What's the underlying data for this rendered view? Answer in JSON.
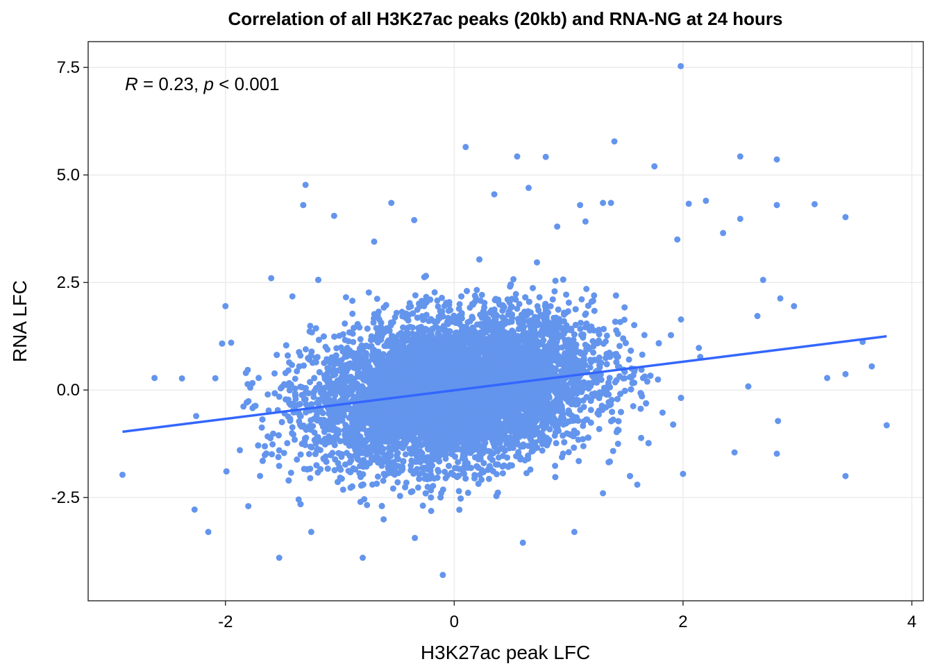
{
  "chart_data": {
    "type": "scatter",
    "title": "Correlation of all H3K27ac peaks (20kb) and RNA-NG at 24 hours",
    "xlabel": "H3K27ac peak LFC",
    "ylabel": "RNA LFC",
    "annotation": {
      "r_symbol": "R",
      "r_text": " = 0.23, ",
      "p_symbol": "p",
      "p_text": " < 0.001"
    },
    "xlim": [
      -3.2,
      4.1
    ],
    "ylim": [
      -4.9,
      8.1
    ],
    "x_ticks": [
      {
        "value": -2,
        "label": "-2"
      },
      {
        "value": 0,
        "label": "0"
      },
      {
        "value": 2,
        "label": "2"
      },
      {
        "value": 4,
        "label": "4"
      }
    ],
    "y_ticks": [
      {
        "value": -2.5,
        "label": "-2.5"
      },
      {
        "value": 0.0,
        "label": "0.0"
      },
      {
        "value": 2.5,
        "label": "2.5"
      },
      {
        "value": 5.0,
        "label": "5.0"
      },
      {
        "value": 7.5,
        "label": "7.5"
      }
    ],
    "grid": true,
    "point_color": "#6495ED",
    "trend_color": "#3366FF",
    "trend_line": {
      "x": [
        -2.9,
        3.78
      ],
      "y": [
        -0.97,
        1.25
      ]
    },
    "points": [
      {
        "x": 1.98,
        "y": 7.53
      },
      {
        "x": 1.4,
        "y": 5.78
      },
      {
        "x": 0.1,
        "y": 5.65
      },
      {
        "x": 2.5,
        "y": 5.43
      },
      {
        "x": 2.82,
        "y": 5.36
      },
      {
        "x": 1.75,
        "y": 5.2
      },
      {
        "x": 0.55,
        "y": 5.43
      },
      {
        "x": 0.8,
        "y": 5.42
      },
      {
        "x": -1.3,
        "y": 4.77
      },
      {
        "x": -1.32,
        "y": 4.3
      },
      {
        "x": -1.05,
        "y": 4.05
      },
      {
        "x": 2.05,
        "y": 4.33
      },
      {
        "x": 2.2,
        "y": 4.4
      },
      {
        "x": 2.82,
        "y": 4.3
      },
      {
        "x": 3.15,
        "y": 4.32
      },
      {
        "x": 3.42,
        "y": 4.02
      },
      {
        "x": 2.5,
        "y": 3.98
      },
      {
        "x": 2.35,
        "y": 3.65
      },
      {
        "x": 1.3,
        "y": 4.35
      },
      {
        "x": 1.37,
        "y": 4.35
      },
      {
        "x": 1.1,
        "y": 4.3
      },
      {
        "x": 0.65,
        "y": 4.7
      },
      {
        "x": 0.35,
        "y": 4.55
      },
      {
        "x": -0.55,
        "y": 4.35
      },
      {
        "x": -0.35,
        "y": 3.95
      },
      {
        "x": 1.95,
        "y": 3.5
      },
      {
        "x": 2.7,
        "y": 2.56
      },
      {
        "x": 2.97,
        "y": 1.95
      },
      {
        "x": 2.85,
        "y": 2.13
      },
      {
        "x": 2.65,
        "y": 1.72
      },
      {
        "x": 3.26,
        "y": 0.28
      },
      {
        "x": 3.42,
        "y": 0.37
      },
      {
        "x": 3.65,
        "y": 0.55
      },
      {
        "x": 3.57,
        "y": 1.12
      },
      {
        "x": 3.78,
        "y": -0.82
      },
      {
        "x": 3.42,
        "y": -2.0
      },
      {
        "x": 2.83,
        "y": -0.72
      },
      {
        "x": 2.82,
        "y": -1.48
      },
      {
        "x": 2.45,
        "y": -1.45
      },
      {
        "x": 2.0,
        "y": -1.95
      },
      {
        "x": -2.9,
        "y": -1.97
      },
      {
        "x": -2.62,
        "y": 0.28
      },
      {
        "x": -2.38,
        "y": 0.27
      },
      {
        "x": -2.27,
        "y": -2.78
      },
      {
        "x": -2.15,
        "y": -3.3
      },
      {
        "x": -2.0,
        "y": 1.95
      },
      {
        "x": -1.53,
        "y": -3.9
      },
      {
        "x": -1.25,
        "y": -3.3
      },
      {
        "x": -0.8,
        "y": -3.9
      },
      {
        "x": -0.1,
        "y": -4.3
      },
      {
        "x": 0.6,
        "y": -3.55
      },
      {
        "x": 1.05,
        "y": -3.3
      },
      {
        "x": -1.6,
        "y": 2.6
      },
      {
        "x": -1.95,
        "y": 1.1
      },
      {
        "x": 1.6,
        "y": -2.2
      },
      {
        "x": -1.8,
        "y": -2.7
      },
      {
        "x": 1.3,
        "y": -2.4
      },
      {
        "x": -0.7,
        "y": 3.45
      },
      {
        "x": 0.9,
        "y": 3.8
      }
    ],
    "cloud": {
      "n": 9000,
      "center_x": 0.0,
      "center_y": 0.0,
      "sd_x": 0.6,
      "sd_y": 0.85,
      "rho": 0.23
    }
  }
}
